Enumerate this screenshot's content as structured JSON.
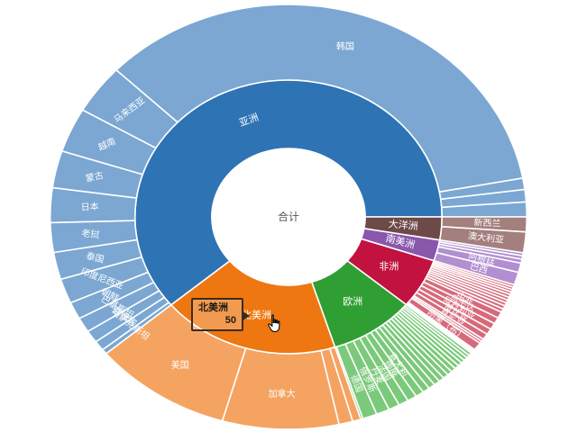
{
  "chart_data": {
    "type": "sunburst",
    "levels": [
      "total",
      "continent",
      "country"
    ],
    "legend_position": "none",
    "tooltip": {
      "name": "北美洲",
      "value": "50"
    },
    "tree": {
      "name": "合计",
      "children": [
        {
          "name": "亚洲",
          "color": "#2e73b4",
          "child_color": "#7ba7d2",
          "children": [
            {
              "name": "",
              "value": 3
            },
            {
              "name": "",
              "value": 2.5
            },
            {
              "name": "",
              "value": 2.3
            },
            {
              "name": "韩国",
              "value": 93
            },
            {
              "name": "马来西亚",
              "value": 10
            },
            {
              "name": "越南",
              "value": 9
            },
            {
              "name": "蒙古",
              "value": 7.5
            },
            {
              "name": "日本",
              "value": 7
            },
            {
              "name": "老挝",
              "value": 6
            },
            {
              "name": "泰国",
              "value": 5.5
            },
            {
              "name": "印度尼西亚",
              "value": 5
            },
            {
              "name": "朝鲜",
              "value": 3.5
            },
            {
              "name": "巴基斯坦",
              "value": 3
            },
            {
              "name": "菲律宾",
              "value": 2.5
            },
            {
              "name": "哈萨克斯坦",
              "value": 2
            },
            {
              "name": "",
              "value": 1
            }
          ]
        },
        {
          "name": "北美洲",
          "color": "#ee7711",
          "child_color": "#f4a361",
          "children": [
            {
              "name": "美国",
              "value": 25
            },
            {
              "name": "加拿大",
              "value": 21
            },
            {
              "name": "",
              "value": 2.5
            },
            {
              "name": "",
              "value": 1.5
            }
          ]
        },
        {
          "name": "欧洲",
          "color": "#2f9e33",
          "child_color": "#7bc97a",
          "children": [
            {
              "name": "",
              "value": 0.4
            },
            {
              "name": "德国",
              "value": 2.6
            },
            {
              "name": "俄罗斯",
              "value": 2.4
            },
            {
              "name": "丹麦",
              "value": 2.0
            },
            {
              "name": "法国",
              "value": 1.8
            },
            {
              "name": "挪威",
              "value": 1.7
            },
            {
              "name": "意大利",
              "value": 1.5
            },
            {
              "name": "",
              "value": 1.3
            },
            {
              "name": "",
              "value": 1.2
            },
            {
              "name": "",
              "value": 1.1
            },
            {
              "name": "",
              "value": 1.0
            },
            {
              "name": "",
              "value": 1.0
            },
            {
              "name": "",
              "value": 0.9
            },
            {
              "name": "",
              "value": 0.9
            },
            {
              "name": "",
              "value": 0.8
            },
            {
              "name": "",
              "value": 0.8
            },
            {
              "name": "",
              "value": 0.7
            },
            {
              "name": "",
              "value": 0.7
            },
            {
              "name": "",
              "value": 0.6
            },
            {
              "name": "",
              "value": 0.6
            }
          ]
        },
        {
          "name": "非洲",
          "color": "#c11240",
          "child_color": "#d76a7a",
          "children": [
            {
              "name": "",
              "value": 0.3
            },
            {
              "name": "",
              "value": 0.3
            },
            {
              "name": "",
              "value": 0.3
            },
            {
              "name": "刚果（布）",
              "value": 1.6
            },
            {
              "name": "",
              "value": 0.5
            },
            {
              "name": "",
              "value": 0.5
            },
            {
              "name": "肯尼亚",
              "value": 1.2
            },
            {
              "name": "赞比亚",
              "value": 1.2
            },
            {
              "name": "尼日利亚",
              "value": 1.3
            },
            {
              "name": "乌干达",
              "value": 1.3
            },
            {
              "name": "中非",
              "value": 1.3
            },
            {
              "name": "",
              "value": 0.7
            },
            {
              "name": "",
              "value": 0.7
            },
            {
              "name": "",
              "value": 0.65
            },
            {
              "name": "",
              "value": 0.6
            },
            {
              "name": "",
              "value": 0.6
            },
            {
              "name": "",
              "value": 0.6
            },
            {
              "name": "",
              "value": 0.55
            },
            {
              "name": "",
              "value": 0.5
            },
            {
              "name": "",
              "value": 0.5
            },
            {
              "name": "",
              "value": 0.5
            }
          ]
        },
        {
          "name": "南美洲",
          "color": "#8a57ad",
          "child_color": "#b18fd0",
          "children": [
            {
              "name": "巴西",
              "value": 2.6
            },
            {
              "name": "阿根廷",
              "value": 1.9
            },
            {
              "name": "",
              "value": 0.8
            },
            {
              "name": "",
              "value": 0.7
            },
            {
              "name": "",
              "value": 0.6
            }
          ]
        },
        {
          "name": "大洋洲",
          "color": "#6d4948",
          "child_color": "#a37f7d",
          "children": [
            {
              "name": "澳大利亚",
              "value": 4.2
            },
            {
              "name": "新西兰",
              "value": 3.0
            }
          ]
        }
      ]
    }
  },
  "icons": {
    "cursor": "hand-pointer"
  }
}
